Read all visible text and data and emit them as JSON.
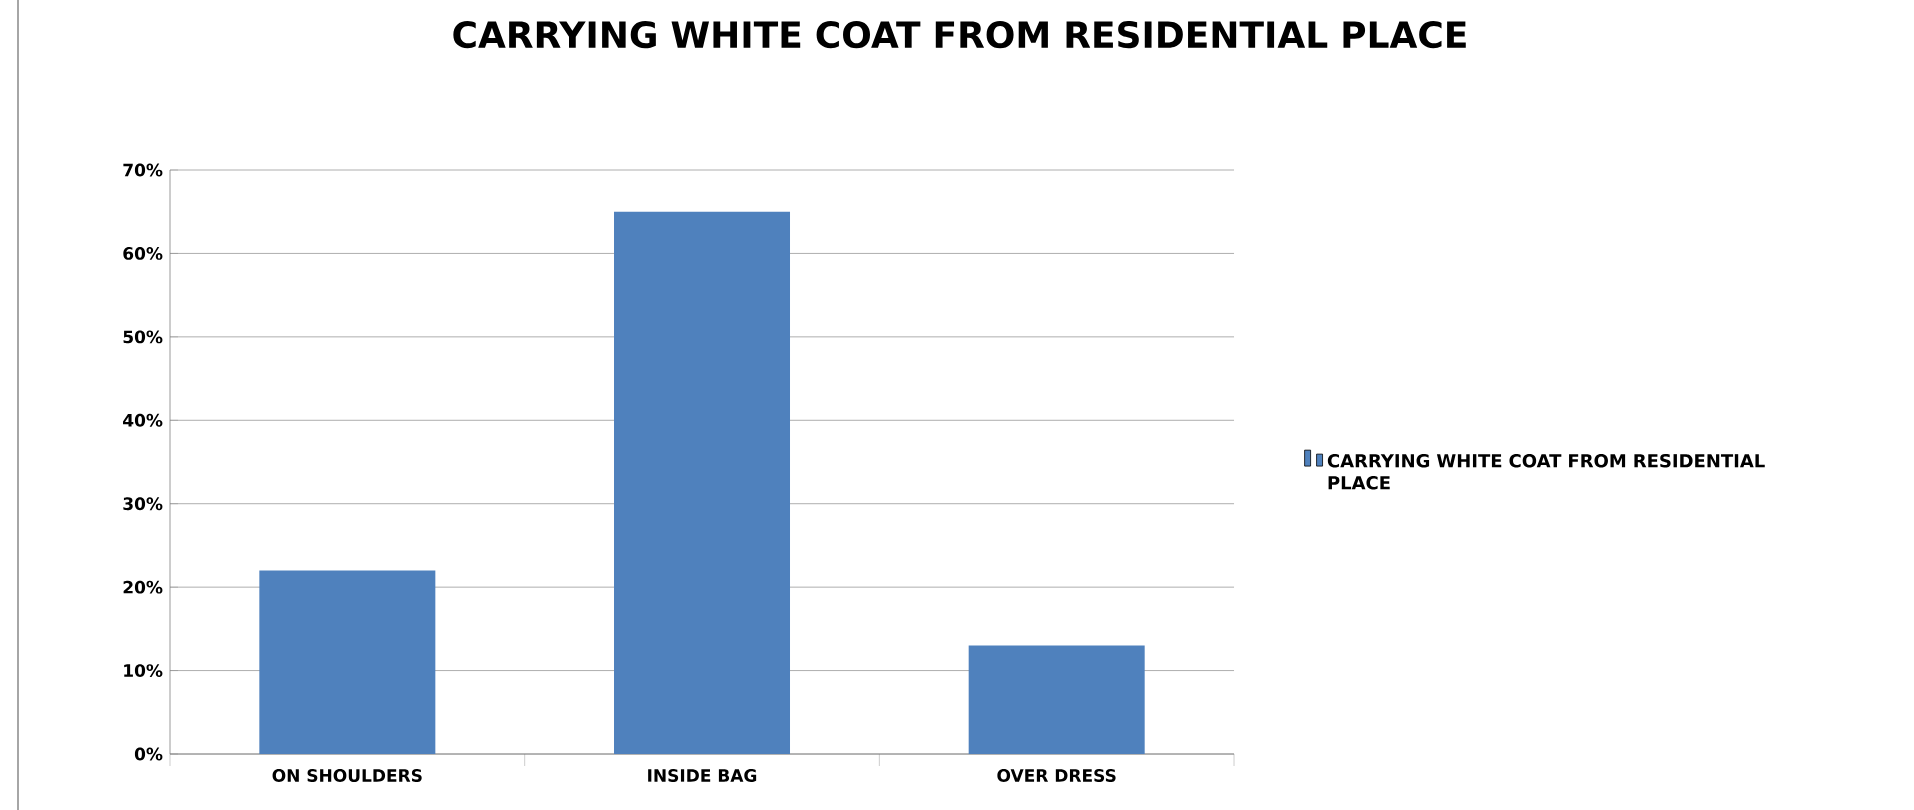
{
  "chart_data": {
    "type": "bar",
    "title": "CARRYING WHITE COAT FROM RESIDENTIAL PLACE",
    "categories": [
      "ON SHOULDERS",
      "INSIDE BAG",
      "OVER DRESS"
    ],
    "series": [
      {
        "name": "CARRYING WHITE COAT FROM RESIDENTIAL PLACE",
        "color": "#4f81bd",
        "values": [
          22,
          65,
          13
        ]
      }
    ],
    "ylim": [
      0,
      70
    ],
    "yticks": [
      {
        "value": 0,
        "label": "0%"
      },
      {
        "value": 10,
        "label": "10%"
      },
      {
        "value": 20,
        "label": "20%"
      },
      {
        "value": 30,
        "label": "30%"
      },
      {
        "value": 40,
        "label": "40%"
      },
      {
        "value": 50,
        "label": "50%"
      },
      {
        "value": 60,
        "label": "60%"
      },
      {
        "value": 70,
        "label": "70%"
      }
    ],
    "grid": "y",
    "legend": "right"
  }
}
